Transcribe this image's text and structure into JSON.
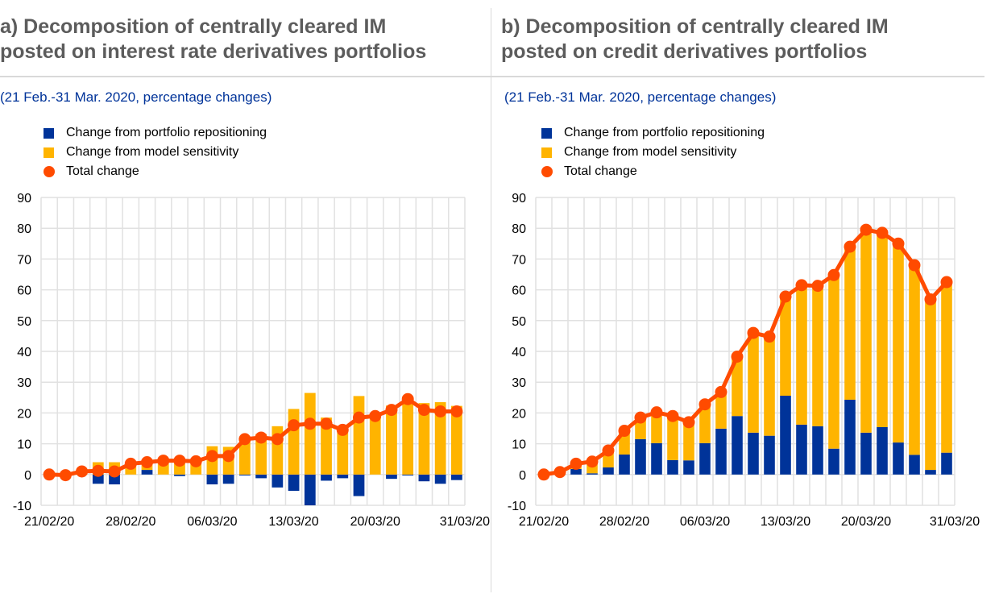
{
  "colors": {
    "repositioning": "#003399",
    "sensitivity": "#ffb400",
    "total": "#ff4b00",
    "grid": "#e1e1e1",
    "title": "#5c5c5c",
    "subtitle": "#003399"
  },
  "panels": [
    {
      "title_line1": "a) Decomposition of centrally cleared IM",
      "title_line2": "posted on interest rate derivatives portfolios",
      "subtitle": "(21 Feb.-31 Mar. 2020, percentage changes)",
      "legend": [
        "Change from portfolio repositioning",
        "Change from model sensitivity",
        "Total change"
      ]
    },
    {
      "title_line1": "b) Decomposition of centrally cleared IM",
      "title_line2": "posted on credit derivatives portfolios",
      "subtitle": "(21 Feb.-31 Mar. 2020, percentage changes)",
      "legend": [
        "Change from portfolio repositioning",
        "Change from model sensitivity",
        "Total change"
      ]
    }
  ],
  "chart_data": [
    {
      "type": "bar",
      "title": "a) Decomposition of centrally cleared IM posted on interest rate derivatives portfolios",
      "subtitle": "(21 Feb.-31 Mar. 2020, percentage changes)",
      "stacked": true,
      "ylim": [
        -10,
        90
      ],
      "yticks": [
        -10,
        0,
        10,
        20,
        30,
        40,
        50,
        60,
        70,
        80,
        90
      ],
      "xtick_labels": [
        "21/02/20",
        "28/02/20",
        "06/03/20",
        "13/03/20",
        "20/03/20",
        "31/03/20"
      ],
      "xtick_index": [
        0,
        5,
        10,
        15,
        20,
        25
      ],
      "n_points": 26,
      "grid": true,
      "legend_position": "top-left",
      "series": [
        {
          "name": "Change from portfolio repositioning",
          "kind": "bar",
          "values": [
            0,
            0,
            0,
            -3,
            -3.2,
            0,
            1.5,
            0,
            -0.5,
            0,
            -3.2,
            -3,
            -0.3,
            -1.2,
            -4.2,
            -5.3,
            -10,
            -2,
            -1.2,
            -7,
            0,
            -1.4,
            -0.3,
            -2.2,
            -3,
            -1.8
          ]
        },
        {
          "name": "Change from model sensitivity",
          "kind": "bar",
          "values": [
            0,
            0,
            1,
            4,
            4,
            3.5,
            2.5,
            4.5,
            4.5,
            4.3,
            9.2,
            9,
            11.8,
            13.2,
            15.7,
            21.3,
            26.5,
            18.5,
            15.7,
            25.5,
            19,
            22.4,
            24.8,
            23.2,
            23.5,
            22.3
          ]
        },
        {
          "name": "Total change",
          "kind": "line",
          "values": [
            0,
            -0.2,
            1,
            1.2,
            1,
            3.5,
            4,
            4.5,
            4.5,
            4.3,
            6,
            6,
            11.5,
            12,
            11.5,
            16,
            16.5,
            16.5,
            14.5,
            18.5,
            19,
            21,
            24.5,
            21,
            20.5,
            20.5
          ]
        }
      ]
    },
    {
      "type": "bar",
      "title": "b) Decomposition of centrally cleared IM posted on credit derivatives portfolios",
      "subtitle": "(21 Feb.-31 Mar. 2020, percentage changes)",
      "stacked": true,
      "ylim": [
        -10,
        90
      ],
      "yticks": [
        -10,
        0,
        10,
        20,
        30,
        40,
        50,
        60,
        70,
        80,
        90
      ],
      "xtick_labels": [
        "21/02/20",
        "28/02/20",
        "06/03/20",
        "13/03/20",
        "20/03/20",
        "31/03/20"
      ],
      "xtick_index": [
        0,
        5,
        10,
        15,
        20,
        25
      ],
      "n_points": 26,
      "grid": true,
      "legend_position": "top-left",
      "series": [
        {
          "name": "Change from portfolio repositioning",
          "kind": "bar",
          "values": [
            0,
            0,
            1.8,
            0.4,
            2.3,
            6.5,
            11.5,
            10.2,
            4.7,
            4.6,
            10.2,
            14.9,
            19,
            13.6,
            12.6,
            25.6,
            16.2,
            15.7,
            8.4,
            24.3,
            13.6,
            15.4,
            10.4,
            6.4,
            1.5,
            7.1
          ]
        },
        {
          "name": "Change from model sensitivity",
          "kind": "bar",
          "values": [
            0,
            0.8,
            1.7,
            3.8,
            5.5,
            7.7,
            7,
            10,
            14.3,
            12.4,
            12.6,
            11.9,
            19.3,
            32.4,
            32.2,
            32.2,
            45.3,
            45.6,
            56.4,
            49.7,
            65.9,
            63.1,
            64.6,
            61.6,
            55.4,
            55.4
          ]
        },
        {
          "name": "Total change",
          "kind": "line",
          "values": [
            0,
            0.8,
            3.5,
            4.2,
            7.8,
            14.2,
            18.5,
            20.2,
            19,
            17,
            22.8,
            26.8,
            38.3,
            46,
            44.8,
            57.8,
            61.5,
            61.3,
            64.8,
            74,
            79.5,
            78.5,
            75,
            68,
            56.9,
            62.5
          ]
        }
      ]
    }
  ]
}
